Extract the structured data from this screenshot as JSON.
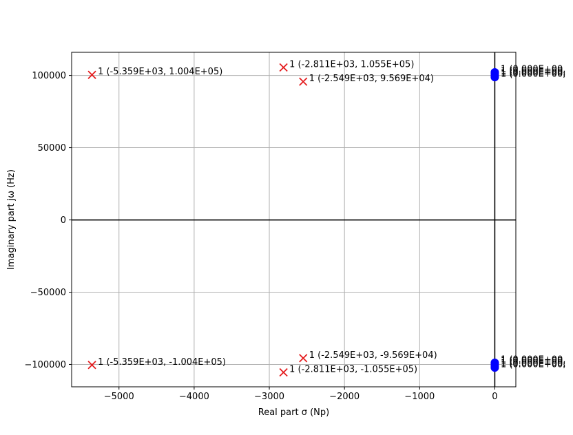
{
  "chart_data": {
    "type": "scatter",
    "title": "",
    "xlabel": "Real part σ (Np)",
    "ylabel": "Imaginary part jω (Hz)",
    "xlim": [
      -5630,
      280
    ],
    "ylim": [
      -115500,
      116000
    ],
    "grid": true,
    "xticks": [
      -5000,
      -4000,
      -3000,
      -2000,
      -1000,
      0
    ],
    "xtick_labels": [
      "−5000",
      "−4000",
      "−3000",
      "−2000",
      "−1000",
      "0"
    ],
    "yticks": [
      100000,
      50000,
      0,
      -50000,
      -100000
    ],
    "ytick_labels": [
      "100000",
      "50000",
      "0",
      "−50000",
      "−100000"
    ],
    "series": [
      {
        "marker": "x",
        "color": "#e41a1c",
        "points": [
          {
            "x": -5359,
            "y": 100400,
            "label": "1 (-5.359E+03, 1.004E+05)"
          },
          {
            "x": -5359,
            "y": -100400,
            "label": "1 (-5.359E+03, -1.004E+05)"
          },
          {
            "x": -2811,
            "y": 105500,
            "label": "1 (-2.811E+03, 1.055E+05)"
          },
          {
            "x": -2811,
            "y": -105500,
            "label": "1 (-2.811E+03, -1.055E+05)"
          },
          {
            "x": -2549,
            "y": 95690,
            "label": "1 (-2.549E+03, 9.569E+04)"
          },
          {
            "x": -2549,
            "y": -95690,
            "label": "1 (-2.549E+03, -9.569E+04)"
          }
        ]
      },
      {
        "marker": "o",
        "color": "#0000ff",
        "points": [
          {
            "x": 0,
            "y": 102200,
            "label": "1 (0.000E+00,"
          },
          {
            "x": 0,
            "y": 101100,
            "label": "1 (0.000E+00,"
          },
          {
            "x": 0,
            "y": 99800,
            "label": "1 (0.000E+00,"
          },
          {
            "x": 0,
            "y": 98800,
            "label": "1 (0.000E+00,"
          },
          {
            "x": 0,
            "y": -98800,
            "label": "1 (0.000E+00,"
          },
          {
            "x": 0,
            "y": -99800,
            "label": "1 (0.000E+00,"
          },
          {
            "x": 0,
            "y": -101100,
            "label": "1 (0.000E+00,"
          },
          {
            "x": 0,
            "y": -102200,
            "label": "1 (0.000E+00,"
          }
        ]
      }
    ]
  }
}
